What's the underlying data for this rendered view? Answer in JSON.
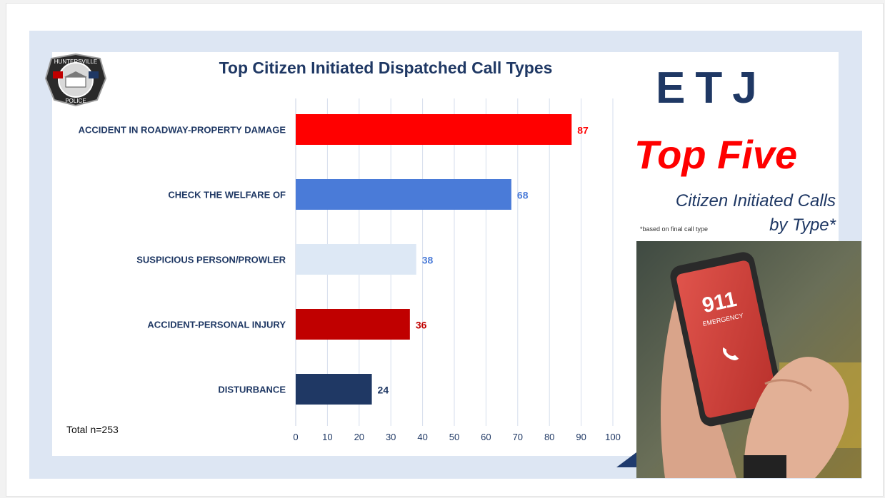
{
  "slide": {
    "title": "Top Citizen Initiated Dispatched Call Types",
    "total_label": "Total n=253",
    "badge": {
      "text_top": "HUNTERSVILLE",
      "text_bottom": "POLICE"
    }
  },
  "side": {
    "etj": "ETJ",
    "top_five": "Top Five",
    "subtitle_line1": "Citizen Initiated Calls",
    "subtitle_line2": "by Type*",
    "footnote": "*based on final call type",
    "phone_number": "911",
    "phone_label": "EMERGENCY"
  },
  "colors": {
    "title": "#1f3864",
    "accent_red": "#ff0000",
    "bar_colors": [
      "#ff0000",
      "#4a7bd8",
      "#dde8f5",
      "#c00000",
      "#1f3864"
    ],
    "label_colors": [
      "#ff0000",
      "#4a7bd8",
      "#4a7bd8",
      "#c00000",
      "#1f3864"
    ]
  },
  "chart_data": {
    "type": "bar",
    "orientation": "horizontal",
    "title": "Top Citizen Initiated Dispatched Call Types",
    "categories": [
      "ACCIDENT IN ROADWAY-PROPERTY DAMAGE",
      "CHECK THE WELFARE OF",
      "SUSPICIOUS PERSON/PROWLER",
      "ACCIDENT-PERSONAL INJURY",
      "DISTURBANCE"
    ],
    "values": [
      87,
      68,
      38,
      36,
      24
    ],
    "xlim": [
      0,
      100
    ],
    "xticks": [
      0,
      10,
      20,
      30,
      40,
      50,
      60,
      70,
      80,
      90,
      100
    ],
    "grid": "vertical",
    "legend": "none"
  }
}
